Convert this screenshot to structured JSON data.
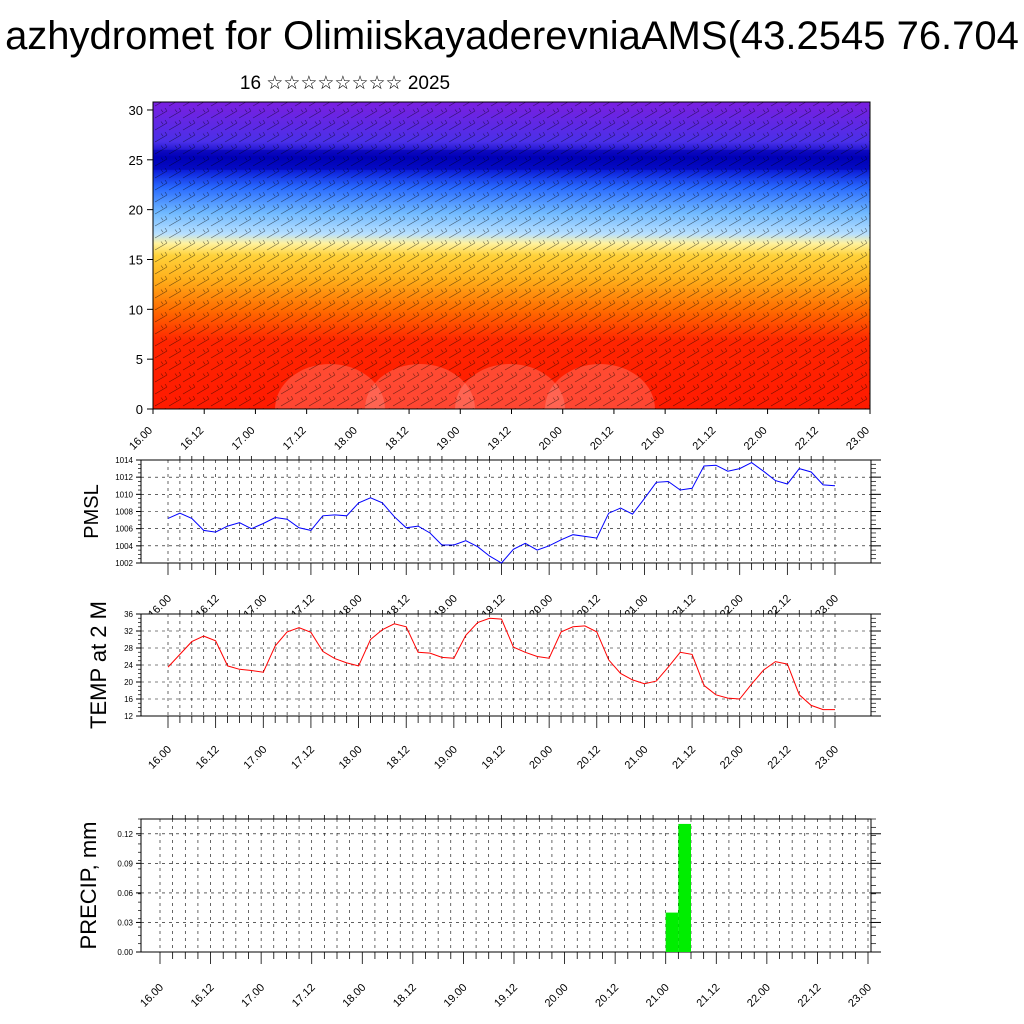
{
  "header": {
    "title": "azhydromet for OlimiiskayaderevniaAMS(43.2545 76.704",
    "subtitle": "16 ☆☆☆☆☆☆☆☆ 2025"
  },
  "colors": {
    "pmsl_line": "#0000ff",
    "temp_line": "#ff0000",
    "precip_bar": "#00ee00",
    "cross_section_top": "#7a1fe0",
    "cross_section_band": "#0000cc",
    "cross_section_mid": "#ffd23a",
    "cross_section_bottom": "#ff1a00"
  },
  "chart_data": [
    {
      "type": "heatmap",
      "name": "cross-section",
      "title": "",
      "xlabel": "",
      "ylabel": "",
      "x_tick_labels": [
        "16.00",
        "16.12",
        "17.00",
        "17.12",
        "18.00",
        "18.12",
        "19.00",
        "19.12",
        "20.00",
        "20.12",
        "21.00",
        "21.12",
        "22.00",
        "22.12",
        "23.00"
      ],
      "y_tick_labels": [
        "0",
        "5",
        "10",
        "15",
        "20",
        "25",
        "30"
      ],
      "ylim": [
        0,
        30.8
      ],
      "color_bands": [
        {
          "from": 0,
          "to": 10,
          "color": "#ff1a00"
        },
        {
          "from": 10,
          "to": 15,
          "color": "#ff9a1a"
        },
        {
          "from": 15,
          "to": 17,
          "color": "#ffd23a"
        },
        {
          "from": 17,
          "to": 22,
          "color": "#8fd0ff"
        },
        {
          "from": 22,
          "to": 26,
          "color": "#0000cc"
        },
        {
          "from": 26,
          "to": 30.8,
          "color": "#7a1fe0"
        }
      ],
      "overlay": "wind barbs"
    },
    {
      "type": "line",
      "name": "pmsl",
      "ylabel": "PMSL",
      "ylim": [
        1002,
        1014
      ],
      "y_tick_labels": [
        "1002",
        "1004",
        "1006",
        "1008",
        "1010",
        "1012",
        "1014"
      ],
      "x_tick_labels": [
        "16.00",
        "16.12",
        "17.00",
        "17.12",
        "18.00",
        "18.12",
        "19.00",
        "19.12",
        "20.00",
        "20.12",
        "21.00",
        "21.12",
        "22.00",
        "22.12",
        "23.00"
      ],
      "x": [
        0,
        3,
        6,
        9,
        12,
        15,
        18,
        21,
        24,
        27,
        30,
        33,
        36,
        39,
        42,
        45,
        48,
        51,
        54,
        57,
        60,
        63,
        66,
        69,
        72,
        75,
        78,
        81,
        84,
        87,
        90,
        93,
        96,
        99,
        102,
        105,
        108,
        111,
        114,
        117,
        120,
        123,
        126,
        129,
        132,
        135,
        138,
        141,
        144,
        147,
        150,
        153,
        156,
        159,
        162,
        165,
        168
      ],
      "values": [
        1007.2,
        1007.8,
        1007.2,
        1005.8,
        1005.6,
        1006.3,
        1006.7,
        1006.0,
        1006.6,
        1007.3,
        1007.1,
        1006.1,
        1005.8,
        1007.5,
        1007.6,
        1007.5,
        1009.0,
        1009.6,
        1009.0,
        1007.4,
        1006.1,
        1006.3,
        1005.5,
        1004.1,
        1004.1,
        1004.6,
        1003.9,
        1002.8,
        1002.0,
        1003.6,
        1004.3,
        1003.5,
        1004.0,
        1004.7,
        1005.3,
        1005.1,
        1004.9,
        1007.8,
        1008.4,
        1007.7,
        1009.5,
        1011.4,
        1011.5,
        1010.5,
        1010.7,
        1013.3,
        1013.4,
        1012.7,
        1013.0,
        1013.7,
        1012.7,
        1011.6,
        1011.2,
        1013.0,
        1012.6,
        1011.1,
        1011.0
      ]
    },
    {
      "type": "line",
      "name": "temp",
      "ylabel": "TEMP at 2 M",
      "ylim": [
        12,
        36
      ],
      "y_tick_labels": [
        "12",
        "16",
        "20",
        "24",
        "28",
        "32",
        "36"
      ],
      "x_tick_labels": [
        "16.00",
        "16.12",
        "17.00",
        "17.12",
        "18.00",
        "18.12",
        "19.00",
        "19.12",
        "20.00",
        "20.12",
        "21.00",
        "21.12",
        "22.00",
        "22.12",
        "23.00"
      ],
      "x": [
        0,
        3,
        6,
        9,
        12,
        15,
        18,
        21,
        24,
        27,
        30,
        33,
        36,
        39,
        42,
        45,
        48,
        51,
        54,
        57,
        60,
        63,
        66,
        69,
        72,
        75,
        78,
        81,
        84,
        87,
        90,
        93,
        96,
        99,
        102,
        105,
        108,
        111,
        114,
        117,
        120,
        123,
        126,
        129,
        132,
        135,
        138,
        141,
        144,
        147,
        150,
        153,
        156,
        159,
        162,
        165,
        168
      ],
      "values": [
        23.5,
        26.5,
        29.5,
        30.8,
        29.7,
        23.8,
        23.0,
        22.7,
        22.3,
        28.5,
        31.8,
        32.8,
        31.7,
        27.2,
        25.5,
        24.5,
        23.8,
        30.0,
        32.3,
        33.7,
        33.0,
        27.0,
        26.8,
        25.8,
        25.6,
        31.0,
        34.0,
        35.0,
        34.8,
        28.2,
        27.0,
        26.0,
        25.6,
        31.8,
        33.0,
        33.2,
        31.8,
        25.2,
        22.0,
        20.5,
        19.6,
        20.2,
        23.5,
        27.0,
        26.5,
        19.2,
        17.0,
        16.2,
        16.0,
        19.5,
        22.8,
        24.8,
        24.2,
        17.0,
        14.5,
        13.5,
        13.5
      ]
    },
    {
      "type": "bar",
      "name": "precip",
      "ylabel": "PRECIP, mm",
      "ylim": [
        0,
        0.135
      ],
      "y_tick_labels": [
        "0.00",
        "0.03",
        "0.06",
        "0.09",
        "0.12"
      ],
      "x_tick_labels": [
        "16.00",
        "16.12",
        "17.00",
        "17.12",
        "18.00",
        "18.12",
        "19.00",
        "19.12",
        "20.00",
        "20.12",
        "21.00",
        "21.12",
        "22.00",
        "22.12",
        "23.00"
      ],
      "bars": [
        {
          "x0": 120,
          "x1": 123,
          "value": 0.04
        },
        {
          "x0": 123,
          "x1": 126,
          "value": 0.13
        }
      ]
    }
  ]
}
